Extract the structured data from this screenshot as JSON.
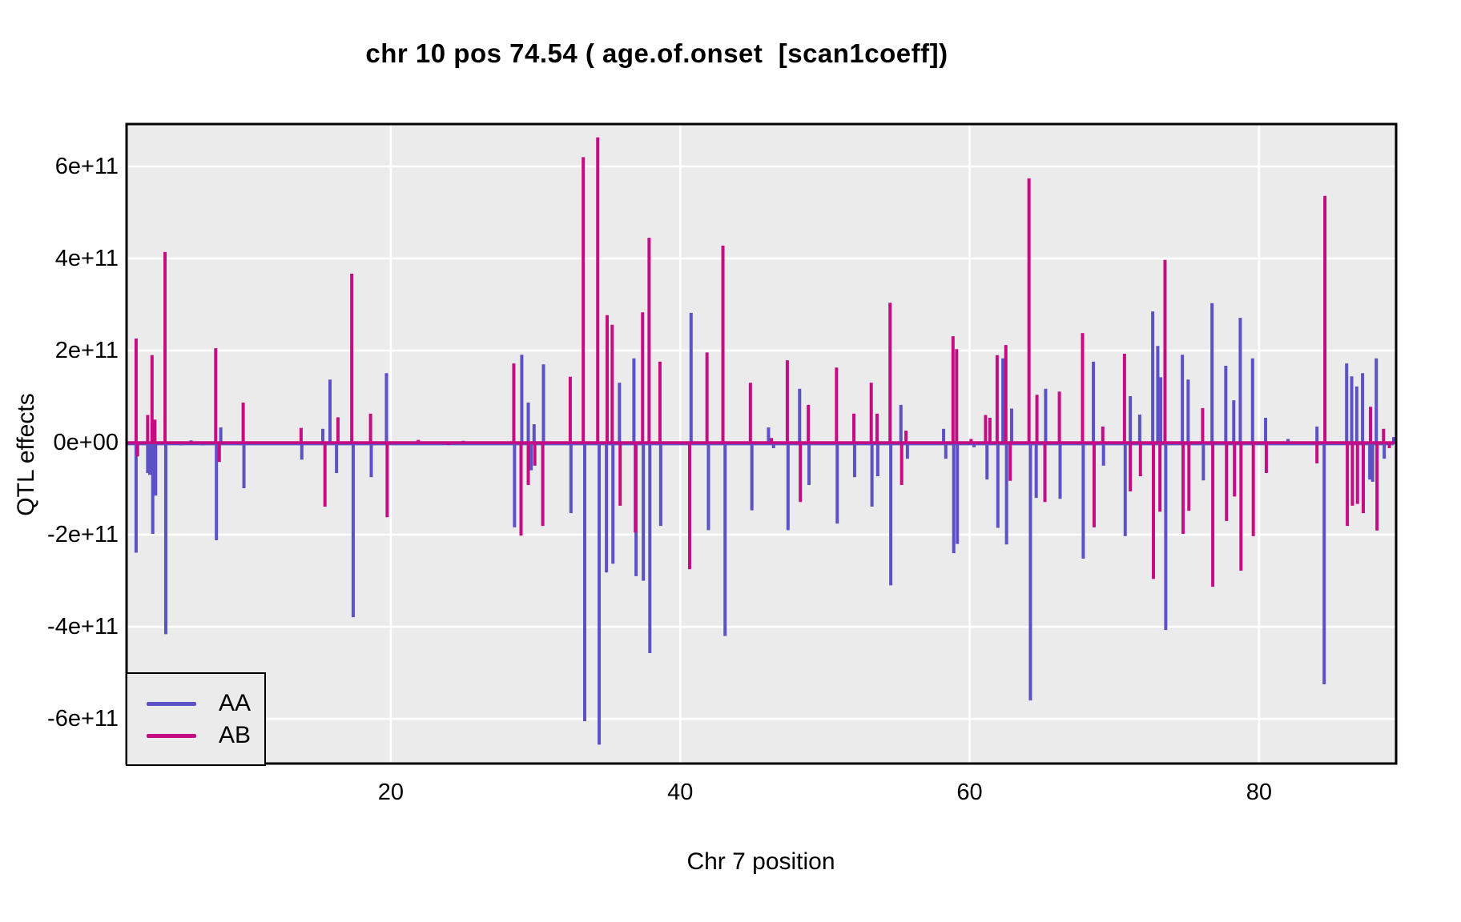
{
  "figure": {
    "title": "chr 10 pos 74.54 ( age.of.onset  [scan1coeff])"
  },
  "axes": {
    "x": {
      "label": "Chr 7 position",
      "ticks": [
        20,
        40,
        60,
        80
      ],
      "range": [
        1.74,
        89.47
      ]
    },
    "y": {
      "label": "QTL effects",
      "ticks": [
        {
          "value": 600000000000.0,
          "label": "6e+11"
        },
        {
          "value": 400000000000.0,
          "label": "4e+11"
        },
        {
          "value": 200000000000.0,
          "label": "2e+11"
        },
        {
          "value": 0,
          "label": "0e+00"
        },
        {
          "value": -200000000000.0,
          "label": "-2e+11"
        },
        {
          "value": -400000000000.0,
          "label": "-4e+11"
        },
        {
          "value": -600000000000.0,
          "label": "-6e+11"
        }
      ],
      "range": [
        -697000000000.0,
        692000000000.0
      ]
    }
  },
  "legend": {
    "items": [
      {
        "label": "AA",
        "color": "#5C51C5"
      },
      {
        "label": "AB",
        "color": "#C60C82"
      }
    ]
  },
  "colors": {
    "panel_background": "#EBEBEB",
    "gridline": "#FFFFFF",
    "panel_border": "#000000",
    "series_aa": "#5C51C5",
    "series_ab": "#C60C82",
    "text": "#000000"
  },
  "chart_data": {
    "type": "line",
    "title": "chr 10 pos 74.54 ( age.of.onset  [scan1coeff])",
    "xlabel": "Chr 7 position",
    "ylabel": "QTL effects",
    "xlim": [
      1.74,
      89.47
    ],
    "ylim": [
      -697000000000.0,
      692000000000.0
    ],
    "grid": true,
    "legend_position": "bottom-left",
    "x_extent": [
      1.85,
      89.25
    ],
    "baseline_value": 0,
    "description": "Spiky coefficient scan: both series sit at 0 along the chromosome with narrow vertical spikes at marker positions; pairs of points [position_Mbp, effect].",
    "series": [
      {
        "name": "AA",
        "color": "#5C51C5",
        "spikes": [
          [
            2.4,
            -239000000000.0
          ],
          [
            3.2,
            -66000000000.0
          ],
          [
            3.35,
            -70000000000.0
          ],
          [
            3.55,
            -198000000000.0
          ],
          [
            3.75,
            -115000000000.0
          ],
          [
            4.45,
            -416000000000.0
          ],
          [
            5.5,
            -6000000000.0
          ],
          [
            6.2,
            5000000000.0
          ],
          [
            7.0,
            -6000000000.0
          ],
          [
            7.95,
            -212000000000.0
          ],
          [
            8.25,
            33000000000.0
          ],
          [
            9.85,
            -99000000000.0
          ],
          [
            13.85,
            -37000000000.0
          ],
          [
            15.3,
            30000000000.0
          ],
          [
            15.8,
            137000000000.0
          ],
          [
            16.25,
            -66000000000.0
          ],
          [
            17.4,
            -379000000000.0
          ],
          [
            18.65,
            -75000000000.0
          ],
          [
            19.7,
            151000000000.0
          ],
          [
            21.9,
            -5000000000.0
          ],
          [
            25.0,
            4000000000.0
          ],
          [
            28.55,
            -184000000000.0
          ],
          [
            29.05,
            191000000000.0
          ],
          [
            29.5,
            87000000000.0
          ],
          [
            29.7,
            -60000000000.0
          ],
          [
            29.9,
            40000000000.0
          ],
          [
            30.55,
            170000000000.0
          ],
          [
            32.45,
            -153000000000.0
          ],
          [
            33.4,
            -605000000000.0
          ],
          [
            34.4,
            -656000000000.0
          ],
          [
            34.9,
            -282000000000.0
          ],
          [
            35.35,
            -263000000000.0
          ],
          [
            35.8,
            130000000000.0
          ],
          [
            36.8,
            183000000000.0
          ],
          [
            36.95,
            -290000000000.0
          ],
          [
            37.45,
            -300000000000.0
          ],
          [
            37.9,
            -457000000000.0
          ],
          [
            38.65,
            -181000000000.0
          ],
          [
            40.75,
            282000000000.0
          ],
          [
            41.95,
            -190000000000.0
          ],
          [
            43.1,
            -420000000000.0
          ],
          [
            44.95,
            -147000000000.0
          ],
          [
            46.1,
            33000000000.0
          ],
          [
            46.45,
            -12000000000.0
          ],
          [
            47.45,
            -190000000000.0
          ],
          [
            48.25,
            117000000000.0
          ],
          [
            48.9,
            -92000000000.0
          ],
          [
            50.85,
            -176000000000.0
          ],
          [
            52.05,
            -75000000000.0
          ],
          [
            53.25,
            -139000000000.0
          ],
          [
            53.65,
            -73000000000.0
          ],
          [
            54.55,
            -310000000000.0
          ],
          [
            55.25,
            82000000000.0
          ],
          [
            55.7,
            -35000000000.0
          ],
          [
            58.2,
            30000000000.0
          ],
          [
            58.35,
            -35000000000.0
          ],
          [
            58.9,
            -240000000000.0
          ],
          [
            59.15,
            -220000000000.0
          ],
          [
            60.3,
            -10000000000.0
          ],
          [
            61.2,
            -80000000000.0
          ],
          [
            61.95,
            -185000000000.0
          ],
          [
            62.3,
            183000000000.0
          ],
          [
            62.55,
            -221000000000.0
          ],
          [
            62.9,
            74000000000.0
          ],
          [
            64.2,
            -560000000000.0
          ],
          [
            64.6,
            -120000000000.0
          ],
          [
            65.25,
            117000000000.0
          ],
          [
            66.25,
            -122000000000.0
          ],
          [
            67.85,
            -252000000000.0
          ],
          [
            68.55,
            176000000000.0
          ],
          [
            69.25,
            -50000000000.0
          ],
          [
            70.75,
            -203000000000.0
          ],
          [
            71.1,
            101000000000.0
          ],
          [
            71.75,
            61000000000.0
          ],
          [
            72.65,
            285000000000.0
          ],
          [
            73.0,
            210000000000.0
          ],
          [
            73.2,
            142000000000.0
          ],
          [
            73.55,
            -407000000000.0
          ],
          [
            74.7,
            191000000000.0
          ],
          [
            75.1,
            137000000000.0
          ],
          [
            76.15,
            -82000000000.0
          ],
          [
            76.75,
            303000000000.0
          ],
          [
            77.7,
            167000000000.0
          ],
          [
            78.25,
            92000000000.0
          ],
          [
            78.7,
            271000000000.0
          ],
          [
            79.55,
            183000000000.0
          ],
          [
            80.45,
            54000000000.0
          ],
          [
            82.0,
            8000000000.0
          ],
          [
            84.0,
            35000000000.0
          ],
          [
            84.5,
            -525000000000.0
          ],
          [
            86.05,
            172000000000.0
          ],
          [
            86.4,
            144000000000.0
          ],
          [
            86.75,
            122000000000.0
          ],
          [
            87.15,
            151000000000.0
          ],
          [
            87.65,
            -80000000000.0
          ],
          [
            87.85,
            -85000000000.0
          ],
          [
            88.1,
            183000000000.0
          ],
          [
            88.65,
            -35000000000.0
          ],
          [
            89.3,
            12000000000.0
          ]
        ]
      },
      {
        "name": "AB",
        "color": "#C60C82",
        "spikes": [
          [
            2.4,
            226000000000.0
          ],
          [
            2.5,
            -30000000000.0
          ],
          [
            3.2,
            60000000000.0
          ],
          [
            3.5,
            190000000000.0
          ],
          [
            3.7,
            50000000000.0
          ],
          [
            4.4,
            414000000000.0
          ],
          [
            7.9,
            205000000000.0
          ],
          [
            8.15,
            -42000000000.0
          ],
          [
            9.8,
            87000000000.0
          ],
          [
            13.8,
            32000000000.0
          ],
          [
            15.45,
            -139000000000.0
          ],
          [
            16.35,
            55000000000.0
          ],
          [
            17.3,
            367000000000.0
          ],
          [
            18.6,
            63000000000.0
          ],
          [
            19.75,
            -162000000000.0
          ],
          [
            21.9,
            6000000000.0
          ],
          [
            24.0,
            -5000000000.0
          ],
          [
            28.5,
            172000000000.0
          ],
          [
            29.0,
            -202000000000.0
          ],
          [
            29.5,
            -92000000000.0
          ],
          [
            29.95,
            -50000000000.0
          ],
          [
            30.5,
            -181000000000.0
          ],
          [
            32.4,
            143000000000.0
          ],
          [
            33.3,
            620000000000.0
          ],
          [
            34.3,
            663000000000.0
          ],
          [
            34.95,
            277000000000.0
          ],
          [
            35.3,
            256000000000.0
          ],
          [
            35.85,
            -137000000000.0
          ],
          [
            36.9,
            -195000000000.0
          ],
          [
            37.4,
            283000000000.0
          ],
          [
            37.85,
            445000000000.0
          ],
          [
            38.6,
            176000000000.0
          ],
          [
            40.65,
            -275000000000.0
          ],
          [
            41.85,
            196000000000.0
          ],
          [
            42.95,
            428000000000.0
          ],
          [
            44.85,
            130000000000.0
          ],
          [
            46.3,
            10000000000.0
          ],
          [
            47.4,
            179000000000.0
          ],
          [
            48.3,
            -129000000000.0
          ],
          [
            48.85,
            82000000000.0
          ],
          [
            50.8,
            163000000000.0
          ],
          [
            52.0,
            63000000000.0
          ],
          [
            53.2,
            130000000000.0
          ],
          [
            53.6,
            63000000000.0
          ],
          [
            54.5,
            304000000000.0
          ],
          [
            55.3,
            -92000000000.0
          ],
          [
            55.6,
            26000000000.0
          ],
          [
            58.85,
            231000000000.0
          ],
          [
            59.1,
            203000000000.0
          ],
          [
            60.1,
            8000000000.0
          ],
          [
            61.1,
            60000000000.0
          ],
          [
            61.4,
            54000000000.0
          ],
          [
            61.9,
            190000000000.0
          ],
          [
            62.5,
            212000000000.0
          ],
          [
            62.8,
            -83000000000.0
          ],
          [
            64.1,
            574000000000.0
          ],
          [
            64.65,
            104000000000.0
          ],
          [
            65.2,
            -129000000000.0
          ],
          [
            66.2,
            111000000000.0
          ],
          [
            67.8,
            238000000000.0
          ],
          [
            68.6,
            -184000000000.0
          ],
          [
            69.2,
            35000000000.0
          ],
          [
            70.7,
            193000000000.0
          ],
          [
            71.1,
            -106000000000.0
          ],
          [
            71.8,
            -73000000000.0
          ],
          [
            72.7,
            -296000000000.0
          ],
          [
            73.15,
            -150000000000.0
          ],
          [
            73.5,
            397000000000.0
          ],
          [
            74.75,
            -198000000000.0
          ],
          [
            75.15,
            -148000000000.0
          ],
          [
            76.1,
            75000000000.0
          ],
          [
            76.8,
            -313000000000.0
          ],
          [
            77.75,
            -170000000000.0
          ],
          [
            78.3,
            -117000000000.0
          ],
          [
            78.75,
            -278000000000.0
          ],
          [
            79.6,
            -203000000000.0
          ],
          [
            80.5,
            -66000000000.0
          ],
          [
            84.0,
            -45000000000.0
          ],
          [
            84.55,
            536000000000.0
          ],
          [
            86.1,
            -181000000000.0
          ],
          [
            86.45,
            -137000000000.0
          ],
          [
            86.8,
            -133000000000.0
          ],
          [
            87.2,
            -153000000000.0
          ],
          [
            87.7,
            78000000000.0
          ],
          [
            88.15,
            -191000000000.0
          ],
          [
            88.6,
            30000000000.0
          ],
          [
            89.0,
            -12000000000.0
          ]
        ]
      }
    ]
  }
}
